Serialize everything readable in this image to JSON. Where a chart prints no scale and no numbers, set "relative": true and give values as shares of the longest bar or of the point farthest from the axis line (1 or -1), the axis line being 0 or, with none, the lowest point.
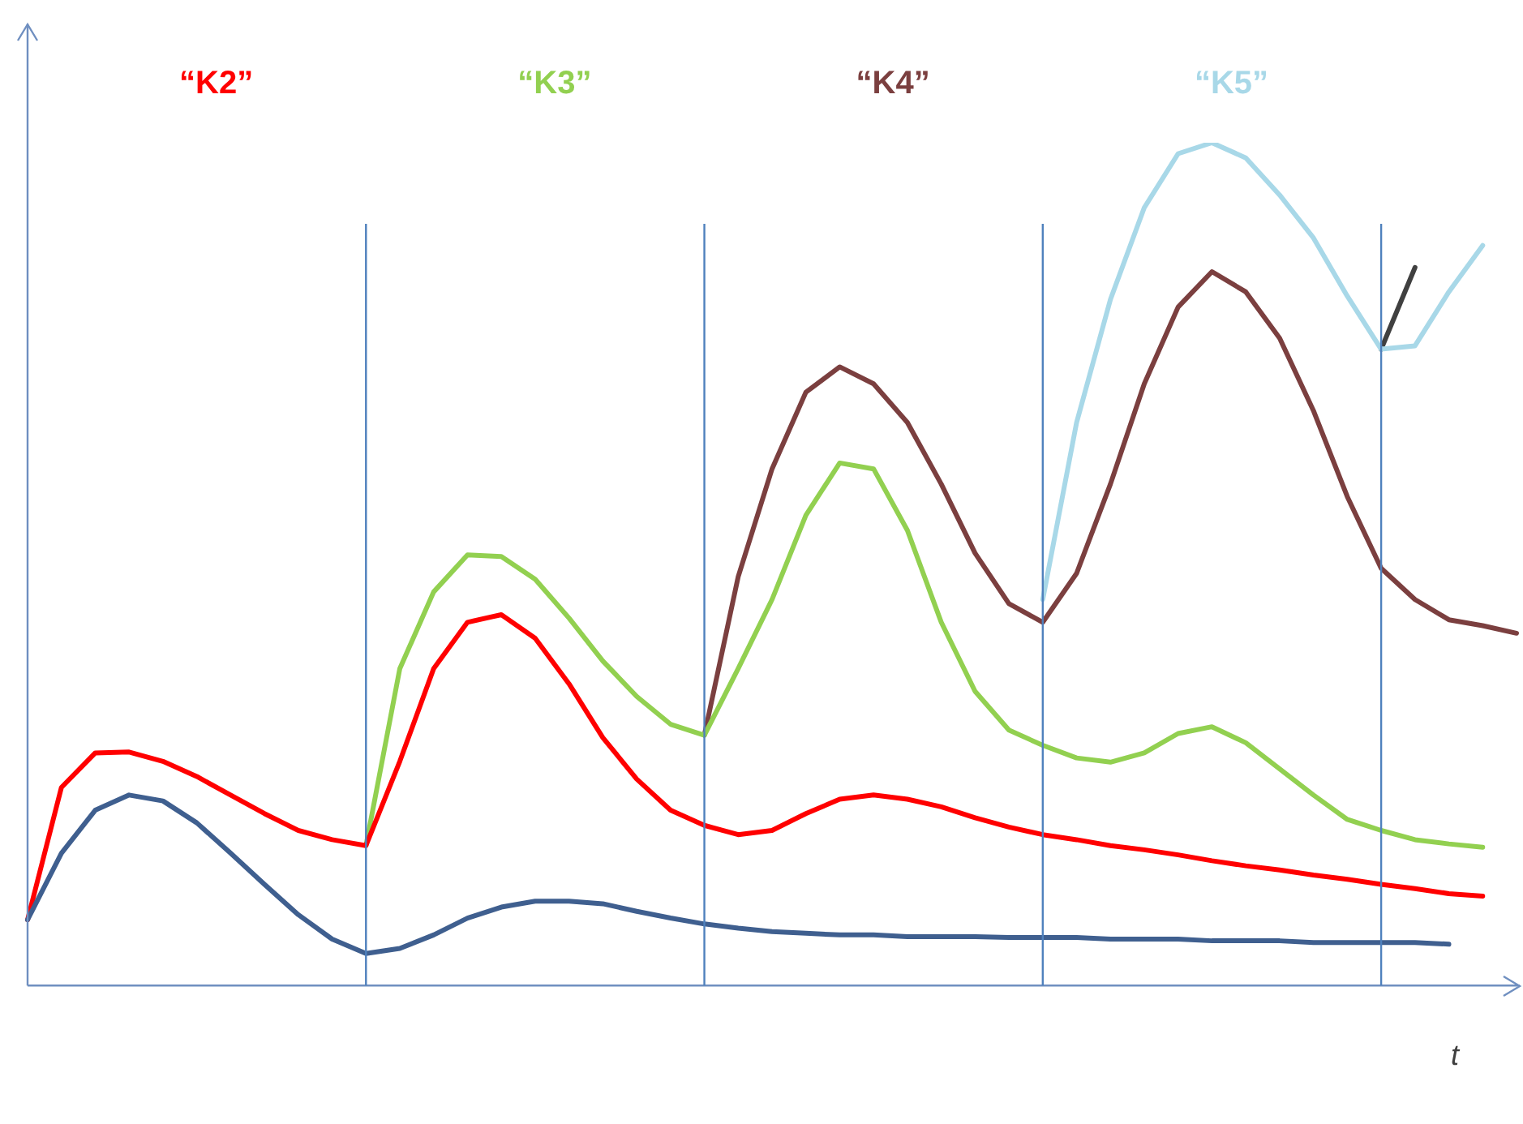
{
  "chart_data": {
    "type": "line",
    "relative": true,
    "xlabel": "t",
    "legend": false,
    "grid": "x",
    "marker": "none",
    "line_style": "solid",
    "categories": [
      null,
      null,
      null,
      null,
      null,
      null,
      null,
      null,
      null,
      null,
      null,
      null,
      null,
      null,
      null,
      null,
      null,
      null,
      null,
      null,
      null,
      null,
      null,
      null,
      null,
      null,
      null,
      null,
      null,
      null,
      null,
      null,
      null,
      null,
      null,
      null,
      null,
      null,
      null,
      null,
      null,
      null,
      null,
      null,
      null
    ],
    "series": [
      {
        "color": "#3f5f8f",
        "values": [
          0.078,
          0.157,
          0.208,
          0.226,
          0.219,
          0.193,
          0.157,
          0.12,
          0.084,
          0.055,
          0.038,
          0.044,
          0.06,
          0.08,
          0.093,
          0.1,
          0.1,
          0.097,
          0.088,
          0.08,
          0.073,
          0.068,
          0.064,
          0.062,
          0.06,
          0.06,
          0.058,
          0.058,
          0.058,
          0.057,
          0.057,
          0.057,
          0.055,
          0.055,
          0.055,
          0.053,
          0.053,
          0.053,
          0.051,
          0.051,
          0.051,
          0.051,
          0.049,
          null,
          null
        ]
      },
      {
        "name": "“K2”",
        "color": "#ff0000",
        "values": [
          0.078,
          0.235,
          0.276,
          0.277,
          0.266,
          0.248,
          0.226,
          0.204,
          0.184,
          0.173,
          0.166,
          0.266,
          0.376,
          0.431,
          0.44,
          0.412,
          0.358,
          0.294,
          0.245,
          0.208,
          0.19,
          0.179,
          0.184,
          0.204,
          0.221,
          0.226,
          0.221,
          0.212,
          0.199,
          0.188,
          0.179,
          0.173,
          0.166,
          0.161,
          0.155,
          0.148,
          0.142,
          0.137,
          0.131,
          0.126,
          0.12,
          0.115,
          0.109,
          0.106,
          null
        ]
      },
      {
        "name": "“K3”",
        "color": "#92d050",
        "values": [
          null,
          null,
          null,
          null,
          null,
          null,
          null,
          null,
          null,
          null,
          0.166,
          0.376,
          0.467,
          0.511,
          0.509,
          0.482,
          0.436,
          0.385,
          0.343,
          0.31,
          0.297,
          0.376,
          0.458,
          0.558,
          0.62,
          0.613,
          0.54,
          0.431,
          0.349,
          0.303,
          0.285,
          0.27,
          0.265,
          0.276,
          0.299,
          0.307,
          0.288,
          0.257,
          0.226,
          0.197,
          0.184,
          0.173,
          0.168,
          0.164,
          null
        ]
      },
      {
        "name": "“K4”",
        "color": "#7b3f3f",
        "values": [
          null,
          null,
          null,
          null,
          null,
          null,
          null,
          null,
          null,
          null,
          null,
          null,
          null,
          null,
          null,
          null,
          null,
          null,
          null,
          null,
          0.297,
          0.485,
          0.613,
          0.704,
          0.734,
          0.714,
          0.668,
          0.595,
          0.513,
          0.453,
          0.431,
          0.489,
          0.595,
          0.714,
          0.805,
          0.847,
          0.823,
          0.768,
          0.682,
          0.58,
          0.495,
          0.458,
          0.434,
          0.427,
          0.418
        ]
      },
      {
        "name": "“K5”",
        "color": "#a8d8e8",
        "values": [
          null,
          null,
          null,
          null,
          null,
          null,
          null,
          null,
          null,
          null,
          null,
          null,
          null,
          null,
          null,
          null,
          null,
          null,
          null,
          null,
          null,
          null,
          null,
          null,
          null,
          null,
          null,
          null,
          null,
          null,
          0.458,
          0.668,
          0.814,
          0.923,
          0.987,
          1,
          0.982,
          0.938,
          0.887,
          0.818,
          0.755,
          0.759,
          0.823,
          0.878,
          null
        ]
      },
      {
        "color": "#404040",
        "values": [
          null,
          null,
          null,
          null,
          null,
          null,
          null,
          null,
          null,
          null,
          null,
          null,
          null,
          null,
          null,
          null,
          null,
          null,
          null,
          null,
          null,
          null,
          null,
          null,
          null,
          null,
          null,
          null,
          null,
          null,
          null,
          null,
          null,
          null,
          null,
          null,
          null,
          null,
          null,
          null,
          0.755,
          0.852,
          null,
          null,
          null
        ]
      }
    ]
  }
}
